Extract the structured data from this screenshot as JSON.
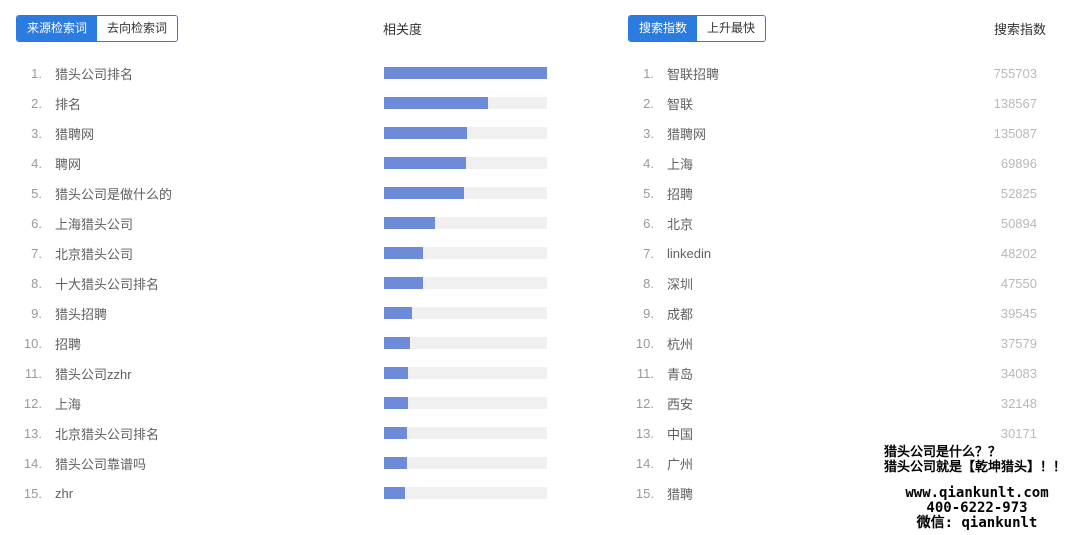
{
  "colors": {
    "accent": "#2b7be0",
    "bar_fill": "#6d8bd9",
    "bar_track": "#f0f0f1",
    "watermark": "#000000"
  },
  "left_panel": {
    "tabs": [
      {
        "label": "来源检索词"
      },
      {
        "label": "去向检索词"
      }
    ],
    "column_header": "相关度",
    "items": [
      {
        "rank": "1.",
        "keyword": "猎头公司排名",
        "relevance": 100
      },
      {
        "rank": "2.",
        "keyword": "排名",
        "relevance": 64
      },
      {
        "rank": "3.",
        "keyword": "猎聘网",
        "relevance": 51
      },
      {
        "rank": "4.",
        "keyword": "聘网",
        "relevance": 50
      },
      {
        "rank": "5.",
        "keyword": "猎头公司是做什么的",
        "relevance": 49
      },
      {
        "rank": "6.",
        "keyword": "上海猎头公司",
        "relevance": 31
      },
      {
        "rank": "7.",
        "keyword": "北京猎头公司",
        "relevance": 24
      },
      {
        "rank": "8.",
        "keyword": "十大猎头公司排名",
        "relevance": 24
      },
      {
        "rank": "9.",
        "keyword": "猎头招聘",
        "relevance": 17
      },
      {
        "rank": "10.",
        "keyword": "招聘",
        "relevance": 16
      },
      {
        "rank": "11.",
        "keyword": "猎头公司zzhr",
        "relevance": 15
      },
      {
        "rank": "12.",
        "keyword": "上海",
        "relevance": 15
      },
      {
        "rank": "13.",
        "keyword": "北京猎头公司排名",
        "relevance": 14
      },
      {
        "rank": "14.",
        "keyword": "猎头公司靠谱吗",
        "relevance": 14
      },
      {
        "rank": "15.",
        "keyword": "zhr",
        "relevance": 13
      }
    ]
  },
  "right_panel": {
    "tabs": [
      {
        "label": "搜索指数"
      },
      {
        "label": "上升最快"
      }
    ],
    "column_header": "搜索指数",
    "items": [
      {
        "rank": "1.",
        "keyword": "智联招聘",
        "value": "755703"
      },
      {
        "rank": "2.",
        "keyword": "智联",
        "value": "138567"
      },
      {
        "rank": "3.",
        "keyword": "猎聘网",
        "value": "135087"
      },
      {
        "rank": "4.",
        "keyword": "上海",
        "value": "69896"
      },
      {
        "rank": "5.",
        "keyword": "招聘",
        "value": "52825"
      },
      {
        "rank": "6.",
        "keyword": "北京",
        "value": "50894"
      },
      {
        "rank": "7.",
        "keyword": "linkedin",
        "value": "48202"
      },
      {
        "rank": "8.",
        "keyword": "深圳",
        "value": "47550"
      },
      {
        "rank": "9.",
        "keyword": "成都",
        "value": "39545"
      },
      {
        "rank": "10.",
        "keyword": "杭州",
        "value": "37579"
      },
      {
        "rank": "11.",
        "keyword": "青岛",
        "value": "34083"
      },
      {
        "rank": "12.",
        "keyword": "西安",
        "value": "32148"
      },
      {
        "rank": "13.",
        "keyword": "中国",
        "value": "30171"
      },
      {
        "rank": "14.",
        "keyword": "广州",
        "value": ""
      },
      {
        "rank": "15.",
        "keyword": "猎聘",
        "value": ""
      }
    ]
  },
  "watermark": {
    "line1": "猎头公司是什么？？",
    "line2": "猎头公司就是【乾坤猎头】！！",
    "line3": "www.qiankunlt.com",
    "line4": "400-6222-973",
    "line5": "微信: qiankunlt"
  }
}
